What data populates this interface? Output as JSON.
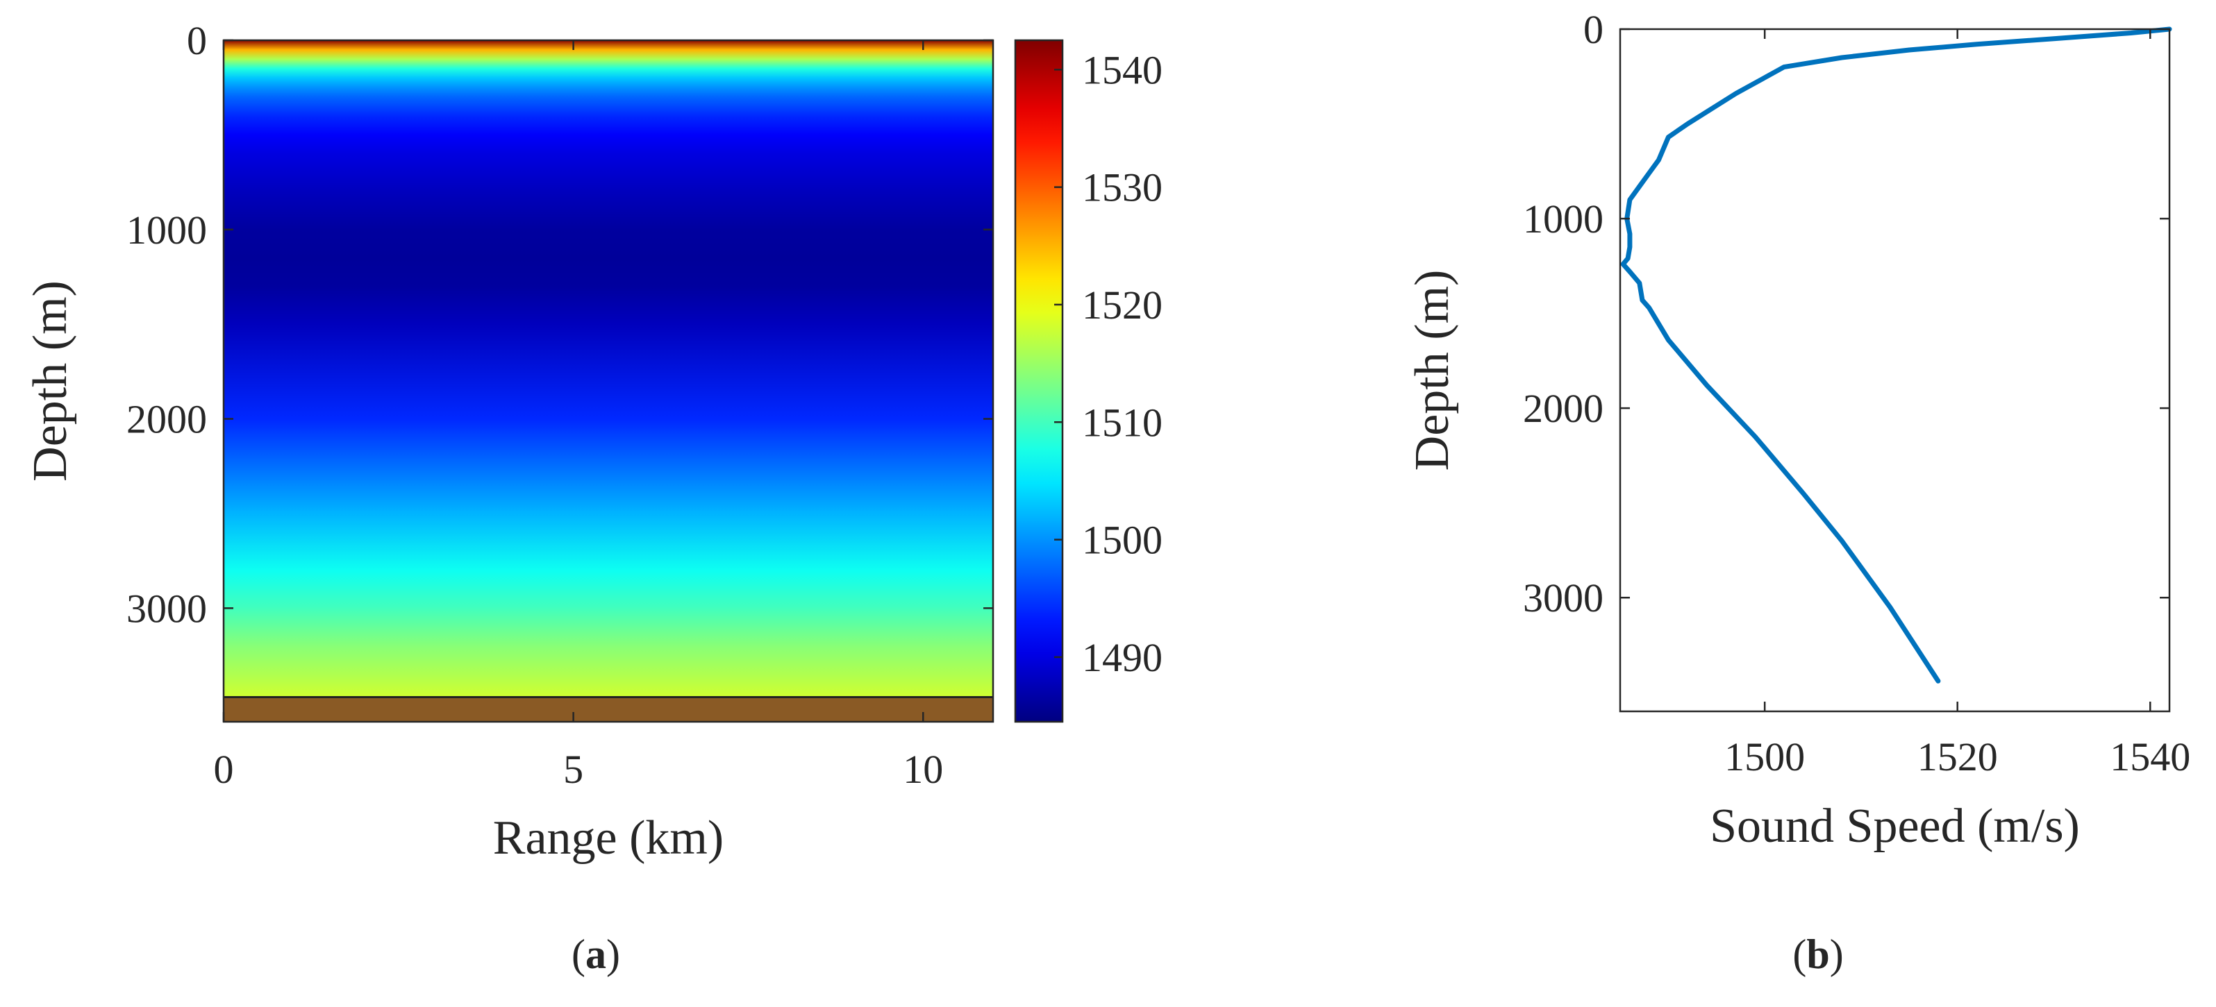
{
  "figure": {
    "caption_a_letter": "a",
    "caption_b_letter": "b"
  },
  "chart_data": [
    {
      "type": "heatmap",
      "panel_label": "a",
      "xlabel": "Range (km)",
      "ylabel": "Depth (m)",
      "xlim": [
        0,
        11
      ],
      "ylim": [
        3600,
        0
      ],
      "y_reversed": true,
      "x_ticks": [
        0,
        5,
        10
      ],
      "y_ticks": [
        0,
        1000,
        2000,
        3000
      ],
      "grid": false,
      "seabed_depth": 3470,
      "seabed_color": "#8a5a25",
      "colorscale": "jet",
      "colorbar": {
        "range": [
          1484.5,
          1542.5
        ],
        "ticks": [
          1490,
          1500,
          1510,
          1520,
          1530,
          1540
        ]
      },
      "depth_profile": [
        {
          "depth": 0,
          "speed": 1542
        },
        {
          "depth": 50,
          "speed": 1525
        },
        {
          "depth": 100,
          "speed": 1516
        },
        {
          "depth": 150,
          "speed": 1508
        },
        {
          "depth": 200,
          "speed": 1503
        },
        {
          "depth": 250,
          "speed": 1500
        },
        {
          "depth": 300,
          "speed": 1497.5
        },
        {
          "depth": 400,
          "speed": 1494
        },
        {
          "depth": 500,
          "speed": 1491.5
        },
        {
          "depth": 600,
          "speed": 1490
        },
        {
          "depth": 800,
          "speed": 1488
        },
        {
          "depth": 1000,
          "speed": 1486.3
        },
        {
          "depth": 1150,
          "speed": 1486
        },
        {
          "depth": 1300,
          "speed": 1486.3
        },
        {
          "depth": 1500,
          "speed": 1488
        },
        {
          "depth": 2000,
          "speed": 1494
        },
        {
          "depth": 2500,
          "speed": 1502
        },
        {
          "depth": 2800,
          "speed": 1507
        },
        {
          "depth": 3000,
          "speed": 1510
        },
        {
          "depth": 3200,
          "speed": 1514
        },
        {
          "depth": 3470,
          "speed": 1518
        }
      ]
    },
    {
      "type": "line",
      "panel_label": "b",
      "xlabel": "Sound Speed (m/s)",
      "ylabel": "Depth (m)",
      "xlim": [
        1485,
        1542
      ],
      "ylim": [
        3600,
        0
      ],
      "y_reversed": true,
      "x_ticks": [
        1500,
        1520,
        1540
      ],
      "y_ticks": [
        0,
        1000,
        2000,
        3000
      ],
      "grid": false,
      "series": [
        {
          "color": "#0072bd",
          "points": [
            [
              1542,
              0
            ],
            [
              1538,
              20
            ],
            [
              1530,
              50
            ],
            [
              1522,
              80
            ],
            [
              1515,
              110
            ],
            [
              1508,
              150
            ],
            [
              1502,
              200
            ],
            [
              1497,
              340
            ],
            [
              1492,
              500
            ],
            [
              1490,
              570
            ],
            [
              1489,
              690
            ],
            [
              1488,
              760
            ],
            [
              1487,
              830
            ],
            [
              1486,
              900
            ],
            [
              1485.7,
              1000
            ],
            [
              1486,
              1080
            ],
            [
              1486,
              1150
            ],
            [
              1485.8,
              1210
            ],
            [
              1485.3,
              1240
            ],
            [
              1486,
              1280
            ],
            [
              1487,
              1340
            ],
            [
              1487.3,
              1430
            ],
            [
              1488,
              1470
            ],
            [
              1490,
              1640
            ],
            [
              1494,
              1880
            ],
            [
              1499,
              2150
            ],
            [
              1504,
              2450
            ],
            [
              1508,
              2700
            ],
            [
              1513,
              3050
            ],
            [
              1518,
              3440
            ]
          ]
        }
      ]
    }
  ]
}
